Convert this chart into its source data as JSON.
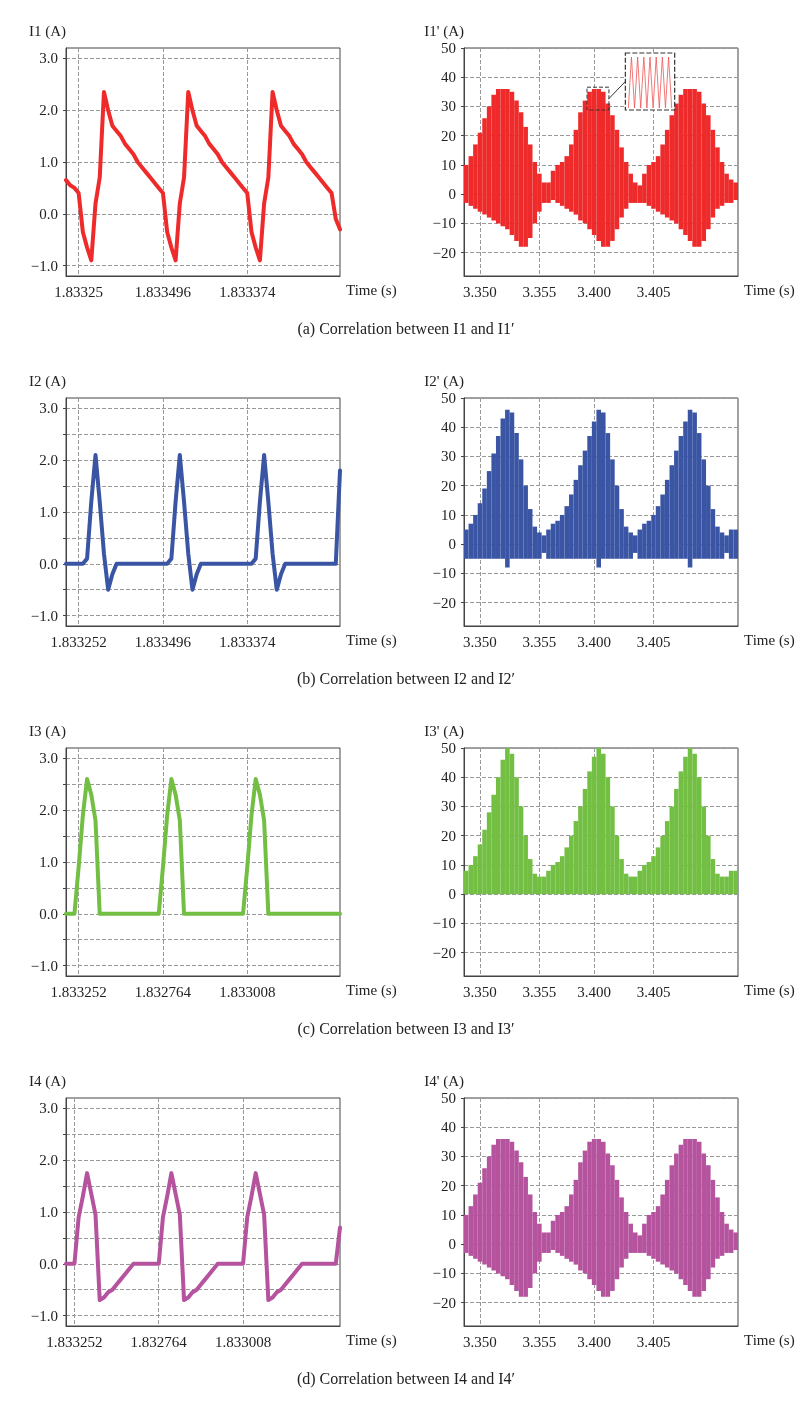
{
  "chart_data": [
    {
      "type": "line",
      "ylabel": "I1 (A)",
      "xlabel": "Time (s)",
      "color": "#ee2a2a",
      "grid": true,
      "ylim": [
        -1.2,
        3.2
      ],
      "yticks": [
        {
          "value": -1,
          "label": "−1.0"
        },
        {
          "value": 0,
          "label": "0.0"
        },
        {
          "value": 1,
          "label": "1.0"
        },
        {
          "value": 2,
          "label": "2.0"
        },
        {
          "value": 3,
          "label": "3.0"
        }
      ],
      "categories": [
        null,
        null,
        null,
        "1.83325",
        null,
        null,
        null,
        null,
        null,
        null,
        null,
        null,
        null,
        null,
        null,
        null,
        null,
        null,
        null,
        null,
        null,
        null,
        null,
        "1.833496",
        null,
        null,
        null,
        null,
        null,
        null,
        null,
        null,
        null,
        null,
        null,
        null,
        null,
        null,
        null,
        null,
        null,
        null,
        null,
        "1.833374",
        null,
        null,
        null,
        null,
        null,
        null,
        null,
        null,
        null,
        null,
        null,
        null,
        null,
        null,
        null,
        null,
        null,
        null,
        null,
        null,
        null,
        null
      ],
      "values": [
        0.65,
        0.55,
        0.5,
        0.4,
        -0.35,
        -0.65,
        -0.9,
        0.2,
        0.7,
        2.35,
        2.0,
        1.7,
        1.6,
        1.5,
        1.35,
        1.25,
        1.15,
        1.0,
        0.9,
        0.8,
        0.7,
        0.6,
        0.5,
        0.4,
        -0.35,
        -0.65,
        -0.9,
        0.2,
        0.7,
        2.35,
        2.0,
        1.7,
        1.6,
        1.5,
        1.35,
        1.25,
        1.15,
        1.0,
        0.9,
        0.8,
        0.7,
        0.6,
        0.5,
        0.4,
        -0.35,
        -0.65,
        -0.9,
        0.2,
        0.7,
        2.35,
        2.0,
        1.7,
        1.6,
        1.5,
        1.35,
        1.25,
        1.15,
        1.0,
        0.9,
        0.8,
        0.7,
        0.6,
        0.5,
        0.4,
        -0.1,
        -0.3
      ]
    },
    {
      "type": "bar",
      "ylabel": "I1' (A)",
      "xlabel": "Time (s)",
      "color": "#ee2a2a",
      "grid": true,
      "ylim": [
        -28,
        50
      ],
      "yticks": [
        {
          "value": -20,
          "label": "−20"
        },
        {
          "value": -10,
          "label": "−10"
        },
        0,
        10,
        20,
        30,
        40,
        50
      ],
      "categories": [
        null,
        null,
        null,
        "3.350",
        null,
        null,
        null,
        null,
        null,
        null,
        null,
        null,
        null,
        null,
        null,
        null,
        "3.355",
        null,
        null,
        null,
        null,
        null,
        null,
        null,
        null,
        null,
        null,
        null,
        "3.400",
        null,
        null,
        null,
        null,
        null,
        null,
        null,
        null,
        null,
        null,
        null,
        null,
        "3.405",
        null,
        null,
        null,
        null,
        null,
        null,
        null,
        null,
        null,
        null,
        null,
        null,
        null,
        null,
        null,
        null,
        null,
        null
      ],
      "base": [
        -3,
        -4,
        -5,
        -6,
        -7,
        -8,
        -9,
        -10,
        -11,
        -12,
        -14,
        -16,
        -18,
        -18,
        -15,
        -10,
        -6,
        -3,
        -3,
        -2,
        -3,
        -4,
        -5,
        -6,
        -7,
        -9,
        -10,
        -12,
        -14,
        -16,
        -18,
        -18,
        -16,
        -12,
        -8,
        -5,
        -3,
        -3,
        -3,
        -3,
        -4,
        -5,
        -6,
        -7,
        -8,
        -9,
        -10,
        -12,
        -14,
        -16,
        -18,
        -18,
        -16,
        -12,
        -8,
        -5,
        -4,
        -3,
        -3,
        -2
      ],
      "values": [
        13,
        17,
        22,
        27,
        33,
        38,
        43,
        46,
        47,
        48,
        49,
        48,
        46,
        41,
        32,
        21,
        13,
        7,
        7,
        10,
        13,
        15,
        18,
        23,
        29,
        37,
        42,
        47,
        50,
        52,
        53,
        49,
        43,
        34,
        24,
        16,
        10,
        7,
        6,
        10,
        14,
        16,
        19,
        24,
        30,
        36,
        41,
        46,
        50,
        52,
        54,
        53,
        47,
        39,
        30,
        21,
        15,
        10,
        8,
        6
      ],
      "annotations": [
        "(a)  Correlation between I1 and I1′"
      ]
    },
    {
      "type": "line",
      "ylabel": "I2 (A)",
      "xlabel": "Time (s)",
      "color": "#3a55a4",
      "grid": true,
      "ylim": [
        -1.2,
        3.2
      ],
      "yticks": [
        {
          "value": -1,
          "label": "−1.0"
        },
        {
          "value": -0.5,
          "label": null
        },
        {
          "value": 0,
          "label": "0.0"
        },
        {
          "value": 0.5,
          "label": null
        },
        {
          "value": 1,
          "label": "1.0"
        },
        {
          "value": 1.5,
          "label": null
        },
        {
          "value": 2,
          "label": "2.0"
        },
        {
          "value": 2.5,
          "label": null
        },
        {
          "value": 3,
          "label": "3.0"
        }
      ],
      "categories": [
        null,
        null,
        null,
        "1.833252",
        null,
        null,
        null,
        null,
        null,
        null,
        null,
        null,
        null,
        null,
        null,
        null,
        null,
        null,
        null,
        null,
        null,
        null,
        null,
        "1.833496",
        null,
        null,
        null,
        null,
        null,
        null,
        null,
        null,
        null,
        null,
        null,
        null,
        null,
        null,
        null,
        null,
        null,
        null,
        null,
        "1.833374",
        null,
        null,
        null,
        null,
        null,
        null,
        null,
        null,
        null,
        null,
        null,
        null,
        null,
        null,
        null,
        null,
        null,
        null,
        null,
        null,
        null,
        null
      ],
      "values": [
        0,
        0,
        0,
        0,
        0,
        0.1,
        1.2,
        2.1,
        1.2,
        0.2,
        -0.5,
        -0.2,
        0,
        0,
        0,
        0,
        0,
        0,
        0,
        0,
        0,
        0,
        0,
        0,
        0,
        0.1,
        1.2,
        2.1,
        1.2,
        0.2,
        -0.5,
        -0.2,
        0,
        0,
        0,
        0,
        0,
        0,
        0,
        0,
        0,
        0,
        0,
        0,
        0,
        0.1,
        1.2,
        2.1,
        1.2,
        0.2,
        -0.5,
        -0.2,
        0,
        0,
        0,
        0,
        0,
        0,
        0,
        0,
        0,
        0,
        0,
        0,
        0,
        1.8
      ]
    },
    {
      "type": "bar",
      "ylabel": "I2' (A)",
      "xlabel": "Time (s)",
      "color": "#3a55a4",
      "grid": true,
      "ylim": [
        -28,
        50
      ],
      "yticks": [
        {
          "value": -20,
          "label": "−20"
        },
        {
          "value": -10,
          "label": "−10"
        },
        0,
        10,
        20,
        30,
        40,
        50
      ],
      "categories": [
        null,
        null,
        null,
        "3.350",
        null,
        null,
        null,
        null,
        null,
        null,
        null,
        null,
        null,
        null,
        null,
        null,
        "3.355",
        null,
        null,
        null,
        null,
        null,
        null,
        null,
        null,
        null,
        null,
        null,
        "3.400",
        null,
        null,
        null,
        null,
        null,
        null,
        null,
        null,
        null,
        null,
        null,
        null,
        "3.405",
        null,
        null,
        null,
        null,
        null,
        null,
        null,
        null,
        null,
        null,
        null,
        null,
        null,
        null,
        null,
        null,
        null,
        null
      ],
      "base": [
        -5,
        -5,
        -5,
        -5,
        -5,
        -5,
        -5,
        -5,
        -5,
        -8,
        -5,
        -5,
        -5,
        -5,
        -5,
        -5,
        -5,
        -3,
        -5,
        -5,
        -5,
        -5,
        -5,
        -5,
        -5,
        -5,
        -5,
        -5,
        -5,
        -8,
        -5,
        -5,
        -5,
        -5,
        -5,
        -5,
        -5,
        -3,
        -5,
        -5,
        -5,
        -5,
        -5,
        -5,
        -5,
        -5,
        -5,
        -5,
        -5,
        -8,
        -5,
        -5,
        -5,
        -5,
        -5,
        -5,
        -5,
        -3,
        -5,
        -5
      ],
      "values": [
        10,
        12,
        15,
        19,
        24,
        30,
        36,
        42,
        48,
        54,
        50,
        43,
        34,
        25,
        17,
        11,
        9,
        6,
        10,
        12,
        13,
        15,
        18,
        22,
        27,
        32,
        37,
        42,
        47,
        54,
        50,
        43,
        34,
        25,
        17,
        11,
        9,
        6,
        10,
        12,
        13,
        15,
        18,
        22,
        27,
        32,
        37,
        42,
        47,
        54,
        50,
        43,
        34,
        25,
        17,
        11,
        9,
        6,
        10,
        10
      ],
      "annotations": [
        "(b)  Correlation between I2 and I2′"
      ]
    },
    {
      "type": "line",
      "ylabel": "I3 (A)",
      "xlabel": "Time (s)",
      "color": "#72bf44",
      "grid": true,
      "ylim": [
        -1.2,
        3.2
      ],
      "yticks": [
        {
          "value": -1,
          "label": "−1.0"
        },
        {
          "value": -0.5,
          "label": null
        },
        {
          "value": 0,
          "label": "0.0"
        },
        {
          "value": 0.5,
          "label": null
        },
        {
          "value": 1,
          "label": "1.0"
        },
        {
          "value": 1.5,
          "label": null
        },
        {
          "value": 2,
          "label": "2.0"
        },
        {
          "value": 2.5,
          "label": null
        },
        {
          "value": 3,
          "label": "3.0"
        }
      ],
      "categories": [
        null,
        null,
        null,
        "1.833252",
        null,
        null,
        null,
        null,
        null,
        null,
        null,
        null,
        null,
        null,
        null,
        null,
        null,
        null,
        null,
        null,
        null,
        null,
        null,
        "1.832764",
        null,
        null,
        null,
        null,
        null,
        null,
        null,
        null,
        null,
        null,
        null,
        null,
        null,
        null,
        null,
        null,
        null,
        null,
        null,
        "1.833008",
        null,
        null,
        null,
        null,
        null,
        null,
        null,
        null,
        null,
        null,
        null,
        null,
        null,
        null,
        null,
        null,
        null,
        null,
        null,
        null,
        null,
        null
      ],
      "values": [
        0,
        0,
        0,
        0.9,
        1.9,
        2.6,
        2.3,
        1.8,
        0,
        0,
        0,
        0,
        0,
        0,
        0,
        0,
        0,
        0,
        0,
        0,
        0,
        0,
        0,
        0.9,
        1.9,
        2.6,
        2.3,
        1.8,
        0,
        0,
        0,
        0,
        0,
        0,
        0,
        0,
        0,
        0,
        0,
        0,
        0,
        0,
        0,
        0.9,
        1.9,
        2.6,
        2.3,
        1.8,
        0,
        0,
        0,
        0,
        0,
        0,
        0,
        0,
        0,
        0,
        0,
        0,
        0,
        0,
        0,
        0,
        0,
        0
      ]
    },
    {
      "type": "bar",
      "ylabel": "I3' (A)",
      "xlabel": "Time (s)",
      "color": "#72bf44",
      "grid": true,
      "ylim": [
        -28,
        50
      ],
      "yticks": [
        {
          "value": -20,
          "label": "−20"
        },
        {
          "value": -10,
          "label": "−10"
        },
        0,
        10,
        20,
        30,
        40,
        50
      ],
      "categories": [
        null,
        null,
        null,
        "3.350",
        null,
        null,
        null,
        null,
        null,
        null,
        null,
        null,
        null,
        null,
        null,
        null,
        "3.355",
        null,
        null,
        null,
        null,
        null,
        null,
        null,
        null,
        null,
        null,
        null,
        "3.400",
        null,
        null,
        null,
        null,
        null,
        null,
        null,
        null,
        null,
        null,
        null,
        null,
        "3.405",
        null,
        null,
        null,
        null,
        null,
        null,
        null,
        null,
        null,
        null,
        null,
        null,
        null,
        null,
        null,
        null,
        null,
        null
      ],
      "values": [
        8,
        10,
        13,
        17,
        22,
        28,
        34,
        40,
        46,
        50,
        48,
        40,
        30,
        20,
        12,
        7,
        6,
        6,
        8,
        10,
        11,
        13,
        16,
        20,
        25,
        30,
        36,
        42,
        47,
        50,
        48,
        40,
        30,
        20,
        12,
        7,
        6,
        6,
        8,
        10,
        11,
        13,
        16,
        20,
        25,
        30,
        36,
        42,
        47,
        50,
        48,
        40,
        30,
        20,
        12,
        7,
        6,
        6,
        8,
        8
      ],
      "annotations": [
        "(c)  Correlation between I3 and I3′"
      ]
    },
    {
      "type": "line",
      "ylabel": "I4 (A)",
      "xlabel": "Time (s)",
      "color": "#b5539e",
      "grid": true,
      "ylim": [
        -1.2,
        3.2
      ],
      "yticks": [
        {
          "value": -1,
          "label": "−1.0"
        },
        {
          "value": -0.5,
          "label": null
        },
        {
          "value": 0,
          "label": "0.0"
        },
        {
          "value": 0.5,
          "label": null
        },
        {
          "value": 1,
          "label": "1.0"
        },
        {
          "value": 1.5,
          "label": null
        },
        {
          "value": 2,
          "label": "2.0"
        },
        {
          "value": 2.5,
          "label": null
        },
        {
          "value": 3,
          "label": "3.0"
        }
      ],
      "categories": [
        null,
        null,
        "1.833252",
        null,
        null,
        null,
        null,
        null,
        null,
        null,
        null,
        null,
        null,
        null,
        null,
        null,
        null,
        null,
        null,
        null,
        null,
        null,
        "1.832764",
        null,
        null,
        null,
        null,
        null,
        null,
        null,
        null,
        null,
        null,
        null,
        null,
        null,
        null,
        null,
        null,
        null,
        null,
        null,
        "1.833008",
        null,
        null,
        null,
        null,
        null,
        null,
        null,
        null,
        null,
        null,
        null,
        null,
        null,
        null,
        null,
        null,
        null,
        null,
        null,
        null,
        null,
        null,
        null
      ],
      "values": [
        0,
        0,
        0,
        0.9,
        1.3,
        1.75,
        1.35,
        0.95,
        -0.7,
        -0.65,
        -0.55,
        -0.5,
        -0.4,
        -0.3,
        -0.2,
        -0.1,
        0,
        0,
        0,
        0,
        0,
        0,
        0,
        0.9,
        1.3,
        1.75,
        1.35,
        0.95,
        -0.7,
        -0.65,
        -0.55,
        -0.5,
        -0.4,
        -0.3,
        -0.2,
        -0.1,
        0,
        0,
        0,
        0,
        0,
        0,
        0,
        0.9,
        1.3,
        1.75,
        1.35,
        0.95,
        -0.7,
        -0.65,
        -0.55,
        -0.5,
        -0.4,
        -0.3,
        -0.2,
        -0.1,
        0,
        0,
        0,
        0,
        0,
        0,
        0,
        0,
        0,
        0.7
      ]
    },
    {
      "type": "bar",
      "ylabel": "I4' (A)",
      "xlabel": "Time (s)",
      "color": "#b5539e",
      "grid": true,
      "ylim": [
        -28,
        50
      ],
      "yticks": [
        {
          "value": -20,
          "label": "−20"
        },
        {
          "value": -10,
          "label": "−10"
        },
        0,
        10,
        20,
        30,
        40,
        50
      ],
      "categories": [
        null,
        null,
        null,
        "3.350",
        null,
        null,
        null,
        null,
        null,
        null,
        null,
        null,
        null,
        null,
        null,
        null,
        "3.355",
        null,
        null,
        null,
        null,
        null,
        null,
        null,
        null,
        null,
        null,
        null,
        "3.400",
        null,
        null,
        null,
        null,
        null,
        null,
        null,
        null,
        null,
        null,
        null,
        null,
        "3.405",
        null,
        null,
        null,
        null,
        null,
        null,
        null,
        null,
        null,
        null,
        null,
        null,
        null,
        null,
        null,
        null,
        null,
        null
      ],
      "base": [
        -3,
        -4,
        -5,
        -6,
        -7,
        -8,
        -9,
        -10,
        -11,
        -12,
        -14,
        -16,
        -18,
        -18,
        -15,
        -10,
        -6,
        -3,
        -3,
        -2,
        -3,
        -4,
        -5,
        -6,
        -7,
        -9,
        -10,
        -12,
        -14,
        -16,
        -18,
        -18,
        -16,
        -12,
        -8,
        -5,
        -3,
        -3,
        -3,
        -3,
        -4,
        -5,
        -6,
        -7,
        -8,
        -9,
        -10,
        -12,
        -14,
        -16,
        -18,
        -18,
        -16,
        -12,
        -8,
        -5,
        -4,
        -3,
        -3,
        -2
      ],
      "values": [
        13,
        17,
        22,
        27,
        33,
        38,
        43,
        46,
        47,
        48,
        49,
        48,
        46,
        41,
        32,
        21,
        13,
        7,
        7,
        10,
        13,
        15,
        18,
        23,
        29,
        37,
        42,
        47,
        50,
        52,
        53,
        49,
        43,
        34,
        24,
        16,
        10,
        7,
        6,
        10,
        14,
        16,
        19,
        24,
        30,
        36,
        41,
        46,
        50,
        52,
        54,
        53,
        47,
        39,
        30,
        21,
        15,
        10,
        8,
        6
      ],
      "annotations": [
        "(d)  Correlation between I4 and I4′"
      ]
    }
  ]
}
